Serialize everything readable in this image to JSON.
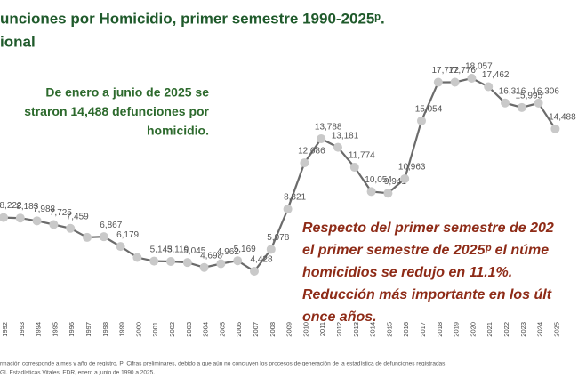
{
  "chart_data": {
    "type": "line",
    "title": "unciones por Homicidio, primer semestre 1990-2025ᵖ.",
    "subtitle": "ional",
    "annotation": [
      "De enero a junio de 2025 se",
      "straron 14,488 defunciones por",
      "homicidio."
    ],
    "highlight": [
      "Respecto del primer semestre de 202",
      "el primer semestre de 2025ᵖ el núme",
      "homicidios se redujo en 11.1%.",
      "Reducción más importante en los últ",
      "once años."
    ],
    "footnotes": [
      "rmación corresponde a mes y año de registro. P: Cifras preliminares, debido a que aún no concluyen los procesos de generación de la estadística de defunciones registradas.",
      "GI. Estadísticas Vitales. EDR, enero a junio de 1990 a 2025."
    ],
    "categories": [
      "1992",
      "1993",
      "1994",
      "1995",
      "1996",
      "1997",
      "1998",
      "1999",
      "2000",
      "2001",
      "2002",
      "2003",
      "2004",
      "2005",
      "2006",
      "2007",
      "2008",
      "2009",
      "2010",
      "2011",
      "2012",
      "2013",
      "2014",
      "2015",
      "2016",
      "2017",
      "2018",
      "2019",
      "2020",
      "2021",
      "2022",
      "2023",
      "2024",
      "2025"
    ],
    "series": [
      {
        "color": "#6b6b6b",
        "values": [
          8222,
          8183,
          7988,
          7725,
          7459,
          6820,
          6867,
          6179,
          5400,
          5143,
          5119,
          5045,
          4698,
          4962,
          5169,
          4428,
          5978,
          8821,
          12086,
          13788,
          13181,
          11774,
          10054,
          9941,
          10963,
          15054,
          17772,
          17776,
          18057,
          17462,
          16316,
          15995,
          16306,
          14488
        ],
        "value_labels": [
          "8,222",
          "8,183",
          "7,988",
          "7,725",
          "7,459",
          null,
          "6,867",
          "6,179",
          null,
          "5,143",
          "5,119",
          "5,045",
          "4,698",
          "4,962",
          "5,169",
          "4,428",
          "5,978",
          "8,821",
          "12,086",
          "13,788",
          "13,181",
          "11,774",
          "10,054",
          "9,941",
          "10,963",
          "15,054",
          "17,772",
          "17,776",
          "18,057",
          "17,462",
          "16,316",
          "15,995",
          "16,306",
          "14,488"
        ]
      }
    ],
    "marker_color": "#c9c9c9"
  }
}
